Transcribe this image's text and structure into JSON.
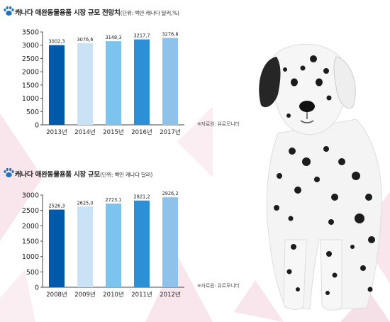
{
  "colors": {
    "bar_gradient": [
      "#005aaa",
      "#c9e2f5",
      "#7cc3ee",
      "#2d8fd6",
      "#8ec2ea"
    ],
    "paw": "#1e73be",
    "decor": "#f6e4ea"
  },
  "icons": {
    "title_icon": "paw-icon",
    "photo": "dalmatian-dog"
  },
  "chart_data": [
    {
      "type": "bar",
      "title": "캐나다 애완동물용품 시장 규모 전망치",
      "unit_note": "(단위: 백만 캐나다 달러,%)",
      "categories": [
        "2013년",
        "2014년",
        "2015년",
        "2016년",
        "2017년"
      ],
      "values": [
        3002.3,
        3076.6,
        3148.3,
        3217.7,
        3276.8
      ],
      "value_labels": [
        "3002,3",
        "3076,6",
        "3148,3",
        "3217,7",
        "3276,8"
      ],
      "yticks": [
        "0",
        "500",
        "1000",
        "1500",
        "2000",
        "2500",
        "3000",
        "3500"
      ],
      "ylim": [
        0,
        3500
      ],
      "grid": false,
      "source": "※자료원: 유로모니터"
    },
    {
      "type": "bar",
      "title": "캐나다 애완동물용품 시장 규모",
      "unit_note": "(단위: 백만 캐나다 달러)",
      "categories": [
        "2008년",
        "2009년",
        "2010년",
        "2011년",
        "2012년"
      ],
      "values": [
        2526.3,
        2625.0,
        2723.1,
        2821.2,
        2926.2
      ],
      "value_labels": [
        "2526,3",
        "2625,0",
        "2723,1",
        "2821,2",
        "2926,2"
      ],
      "yticks": [
        "0",
        "500",
        "1000",
        "1500",
        "2000",
        "2500",
        "3000"
      ],
      "ylim": [
        0,
        3000
      ],
      "grid": false,
      "source": "※자료원: 유로모니터"
    }
  ]
}
